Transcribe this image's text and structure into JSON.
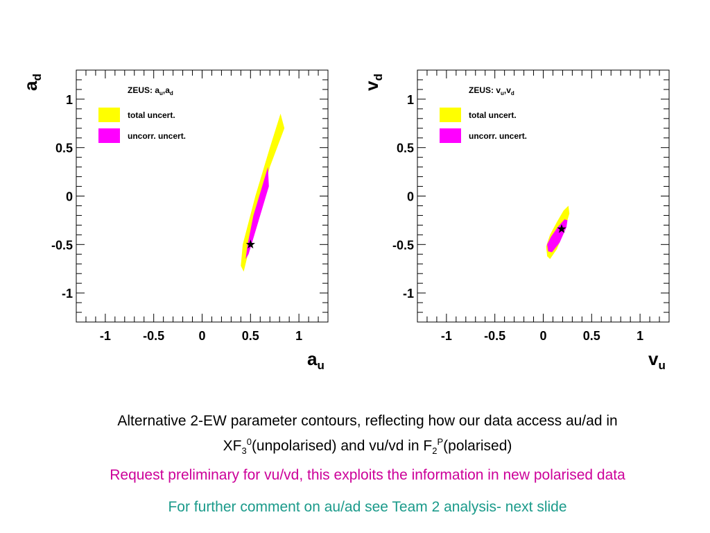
{
  "chart_data": [
    {
      "type": "scatter",
      "title": "",
      "xlabel": "a",
      "xlabel_sub": "u",
      "ylabel": "a",
      "ylabel_sub": "d",
      "xlim": [
        -1.3,
        1.3
      ],
      "ylim": [
        -1.3,
        1.3
      ],
      "ticks": [
        -1,
        -0.5,
        0,
        0.5,
        1
      ],
      "tick_labels": [
        "-1",
        "-0.5",
        "0",
        "0.5",
        "1"
      ],
      "legend": {
        "placement": "top-left",
        "header": "ZEUS: a",
        "header_sub1": "u",
        "header_mid": ",a",
        "header_sub2": "d",
        "entries": [
          {
            "label": "total uncert.",
            "color": "#ffff00"
          },
          {
            "label": "uncorr. uncert.",
            "color": "#ff00ff"
          }
        ]
      },
      "series": [
        {
          "name": "total uncert.",
          "color": "#ffff00",
          "polygon": [
            [
              0.4,
              -0.72
            ],
            [
              0.43,
              -0.78
            ],
            [
              0.57,
              -0.2
            ],
            [
              0.7,
              0.3
            ],
            [
              0.85,
              0.7
            ],
            [
              0.81,
              0.85
            ],
            [
              0.7,
              0.5
            ],
            [
              0.55,
              0.0
            ],
            [
              0.42,
              -0.5
            ]
          ]
        },
        {
          "name": "uncorr. uncert.",
          "color": "#ff00ff",
          "polygon": [
            [
              0.45,
              -0.65
            ],
            [
              0.48,
              -0.6
            ],
            [
              0.57,
              -0.3
            ],
            [
              0.66,
              0.0
            ],
            [
              0.69,
              0.1
            ],
            [
              0.68,
              0.3
            ],
            [
              0.62,
              0.1
            ],
            [
              0.53,
              -0.2
            ],
            [
              0.47,
              -0.5
            ]
          ]
        }
      ],
      "central_value": {
        "x": 0.5,
        "y": -0.5,
        "marker": "star"
      }
    },
    {
      "type": "scatter",
      "title": "",
      "xlabel": "v",
      "xlabel_sub": "u",
      "ylabel": "v",
      "ylabel_sub": "d",
      "xlim": [
        -1.3,
        1.3
      ],
      "ylim": [
        -1.3,
        1.3
      ],
      "ticks": [
        -1,
        -0.5,
        0,
        0.5,
        1
      ],
      "tick_labels": [
        "-1",
        "-0.5",
        "0",
        "0.5",
        "1"
      ],
      "legend": {
        "placement": "top-left",
        "header": "ZEUS: v",
        "header_sub1": "u",
        "header_mid": ",v",
        "header_sub2": "d",
        "entries": [
          {
            "label": "total uncert.",
            "color": "#ffff00"
          },
          {
            "label": "uncorr. uncert.",
            "color": "#ff00ff"
          }
        ]
      },
      "series": [
        {
          "name": "total uncert.",
          "color": "#ffff00",
          "polygon": [
            [
              0.03,
              -0.52
            ],
            [
              0.04,
              -0.62
            ],
            [
              0.07,
              -0.65
            ],
            [
              0.14,
              -0.55
            ],
            [
              0.22,
              -0.35
            ],
            [
              0.27,
              -0.18
            ],
            [
              0.26,
              -0.1
            ],
            [
              0.21,
              -0.15
            ],
            [
              0.14,
              -0.27
            ],
            [
              0.07,
              -0.4
            ]
          ]
        },
        {
          "name": "uncorr. uncert.",
          "color": "#ff00ff",
          "polygon": [
            [
              0.04,
              -0.5
            ],
            [
              0.05,
              -0.57
            ],
            [
              0.09,
              -0.58
            ],
            [
              0.17,
              -0.48
            ],
            [
              0.24,
              -0.32
            ],
            [
              0.25,
              -0.25
            ],
            [
              0.22,
              -0.24
            ],
            [
              0.15,
              -0.32
            ],
            [
              0.08,
              -0.42
            ]
          ]
        }
      ],
      "central_value": {
        "x": 0.19,
        "y": -0.34,
        "marker": "star"
      }
    }
  ],
  "caption": {
    "line1_a": "Alternative 2-EW parameter contours, reflecting how our data access au/ad in",
    "line2_a": "XF",
    "line2_sub1": "3",
    "line2_sup1": "0",
    "line2_b": "(unpolarised) and vu/vd in F",
    "line2_sub2": "2",
    "line2_sup2": "P",
    "line2_c": "(polarised)",
    "request": "Request preliminary for vu/vd, this exploits the information in new polarised data",
    "request_color": "#cc0099",
    "comment": "For further comment on au/ad see Team 2 analysis- next slide",
    "comment_color": "#1a9a8a"
  }
}
